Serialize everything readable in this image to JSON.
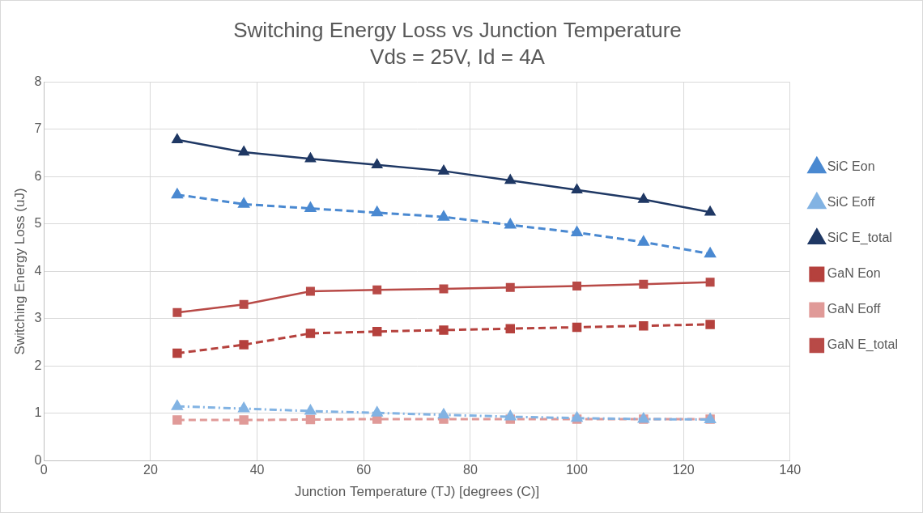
{
  "chart_data": {
    "type": "line",
    "title": "Switching Energy Loss vs Junction Temperature",
    "subtitle": "Vds = 25V, Id = 4A",
    "x_label": "Junction Temperature (TJ) [degrees (C)]",
    "y_label": "Switching Energy Loss (uJ)",
    "x": [
      25,
      37.5,
      50,
      62.5,
      75,
      87.5,
      100,
      112.5,
      125
    ],
    "xlim": [
      0,
      140
    ],
    "xticks": [
      0,
      20,
      40,
      60,
      80,
      100,
      120,
      140
    ],
    "ylim": [
      0,
      8
    ],
    "yticks": [
      0,
      1,
      2,
      3,
      4,
      5,
      6,
      7,
      8
    ],
    "grid": true,
    "legend": "right",
    "series": [
      {
        "name": "SiC Eon",
        "color": "#4a89d1",
        "marker": "triangle",
        "line_style": "dashed",
        "values": [
          5.62,
          5.42,
          5.33,
          5.24,
          5.15,
          4.98,
          4.82,
          4.62,
          4.37
        ]
      },
      {
        "name": "SiC Eoff",
        "color": "#82b3e3",
        "marker": "triangle",
        "line_style": "dashdot",
        "values": [
          1.15,
          1.1,
          1.05,
          1.01,
          0.97,
          0.93,
          0.9,
          0.88,
          0.87
        ]
      },
      {
        "name": "SiC E_total",
        "color": "#1f3864",
        "marker": "triangle",
        "line_style": "solid",
        "values": [
          6.78,
          6.52,
          6.38,
          6.25,
          6.12,
          5.92,
          5.72,
          5.52,
          5.25
        ]
      },
      {
        "name": "GaN Eon",
        "color": "#b5413d",
        "marker": "square",
        "line_style": "dashed",
        "values": [
          2.27,
          2.45,
          2.69,
          2.73,
          2.76,
          2.79,
          2.82,
          2.85,
          2.88
        ]
      },
      {
        "name": "GaN Eoff",
        "color": "#e09a98",
        "marker": "square",
        "line_style": "dashed",
        "values": [
          0.86,
          0.86,
          0.87,
          0.88,
          0.88,
          0.88,
          0.88,
          0.88,
          0.88
        ]
      },
      {
        "name": "GaN E_total",
        "color": "#b84a47",
        "marker": "square",
        "line_style": "solid",
        "values": [
          3.13,
          3.3,
          3.58,
          3.61,
          3.63,
          3.66,
          3.69,
          3.73,
          3.77
        ]
      }
    ]
  }
}
